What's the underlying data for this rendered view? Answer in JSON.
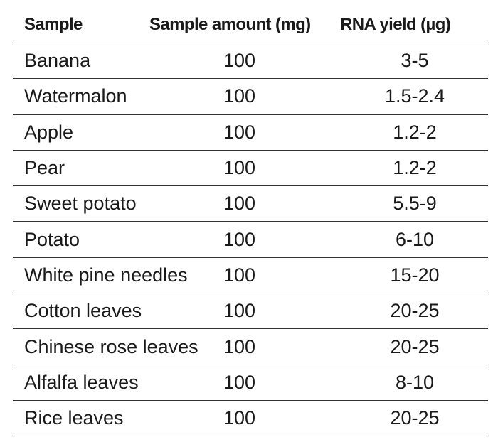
{
  "table": {
    "headers": {
      "sample": "Sample",
      "amount": "Sample amount (mg)",
      "yield": "RNA yield (µg)"
    },
    "rows": [
      {
        "sample": "Banana",
        "amount": "100",
        "yield": "3-5"
      },
      {
        "sample": "Watermalon",
        "amount": "100",
        "yield": "1.5-2.4"
      },
      {
        "sample": "Apple",
        "amount": "100",
        "yield": "1.2-2"
      },
      {
        "sample": "Pear",
        "amount": "100",
        "yield": "1.2-2"
      },
      {
        "sample": "Sweet potato",
        "amount": "100",
        "yield": "5.5-9"
      },
      {
        "sample": "Potato",
        "amount": "100",
        "yield": "6-10"
      },
      {
        "sample": "White pine needles",
        "amount": "100",
        "yield": "15-20"
      },
      {
        "sample": "Cotton leaves",
        "amount": "100",
        "yield": "20-25"
      },
      {
        "sample": "Chinese rose leaves",
        "amount": "100",
        "yield": "20-25"
      },
      {
        "sample": "Alfalfa leaves",
        "amount": "100",
        "yield": "8-10"
      },
      {
        "sample": "Rice leaves",
        "amount": "100",
        "yield": "20-25"
      }
    ]
  }
}
